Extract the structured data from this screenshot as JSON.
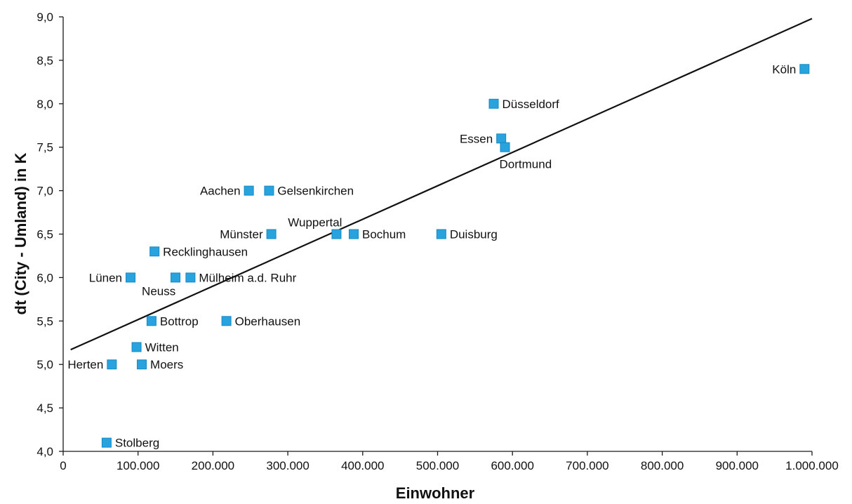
{
  "chart_data": {
    "type": "scatter",
    "title": "",
    "xlabel": "Einwohner",
    "ylabel": "dt (City - Umland) in K",
    "xlim": [
      0,
      1000000
    ],
    "ylim": [
      4.0,
      9.0
    ],
    "x_ticks": [
      0,
      100000,
      200000,
      300000,
      400000,
      500000,
      600000,
      700000,
      800000,
      900000,
      1000000
    ],
    "x_tick_labels": [
      "0",
      "100.000",
      "200.000",
      "300.000",
      "400.000",
      "500.000",
      "600.000",
      "700.000",
      "800.000",
      "900.000",
      "1.000.000"
    ],
    "y_ticks": [
      4.0,
      4.5,
      5.0,
      5.5,
      6.0,
      6.5,
      7.0,
      7.5,
      8.0,
      8.5,
      9.0
    ],
    "y_tick_labels": [
      "4,0",
      "4,5",
      "5,0",
      "5,5",
      "6,0",
      "6,5",
      "7,0",
      "7,5",
      "8,0",
      "8,5",
      "9,0"
    ],
    "grid": false,
    "marker_color": "#29a3dd",
    "trendline": {
      "x": [
        10000,
        1000000
      ],
      "y": [
        5.17,
        8.98
      ]
    },
    "points": [
      {
        "name": "Köln",
        "x": 990000,
        "y": 8.4,
        "label_side": "left"
      },
      {
        "name": "Düsseldorf",
        "x": 575000,
        "y": 8.0,
        "label_side": "right"
      },
      {
        "name": "Essen",
        "x": 585000,
        "y": 7.6,
        "label_side": "left"
      },
      {
        "name": "Dortmund",
        "x": 590000,
        "y": 7.5,
        "label_side": "below"
      },
      {
        "name": "Aachen",
        "x": 248000,
        "y": 7.0,
        "label_side": "left"
      },
      {
        "name": "Gelsenkirchen",
        "x": 275000,
        "y": 7.0,
        "label_side": "right"
      },
      {
        "name": "Münster",
        "x": 278000,
        "y": 6.5,
        "label_side": "left"
      },
      {
        "name": "Wuppertal",
        "x": 365000,
        "y": 6.5,
        "label_side": "above-left"
      },
      {
        "name": "Bochum",
        "x": 388000,
        "y": 6.5,
        "label_side": "right"
      },
      {
        "name": "Duisburg",
        "x": 505000,
        "y": 6.5,
        "label_side": "right"
      },
      {
        "name": "Recklinghausen",
        "x": 122000,
        "y": 6.3,
        "label_side": "right"
      },
      {
        "name": "Lünen",
        "x": 90000,
        "y": 6.0,
        "label_side": "left"
      },
      {
        "name": "Neuss",
        "x": 150000,
        "y": 6.0,
        "label_side": "below-left"
      },
      {
        "name": "Mülheim a.d. Ruhr",
        "x": 170000,
        "y": 6.0,
        "label_side": "right"
      },
      {
        "name": "Bottrop",
        "x": 118000,
        "y": 5.5,
        "label_side": "right"
      },
      {
        "name": "Oberhausen",
        "x": 218000,
        "y": 5.5,
        "label_side": "right"
      },
      {
        "name": "Witten",
        "x": 98000,
        "y": 5.2,
        "label_side": "right"
      },
      {
        "name": "Herten",
        "x": 65000,
        "y": 5.0,
        "label_side": "left"
      },
      {
        "name": "Moers",
        "x": 105000,
        "y": 5.0,
        "label_side": "right"
      },
      {
        "name": "Stolberg",
        "x": 58000,
        "y": 4.1,
        "label_side": "right"
      }
    ]
  }
}
